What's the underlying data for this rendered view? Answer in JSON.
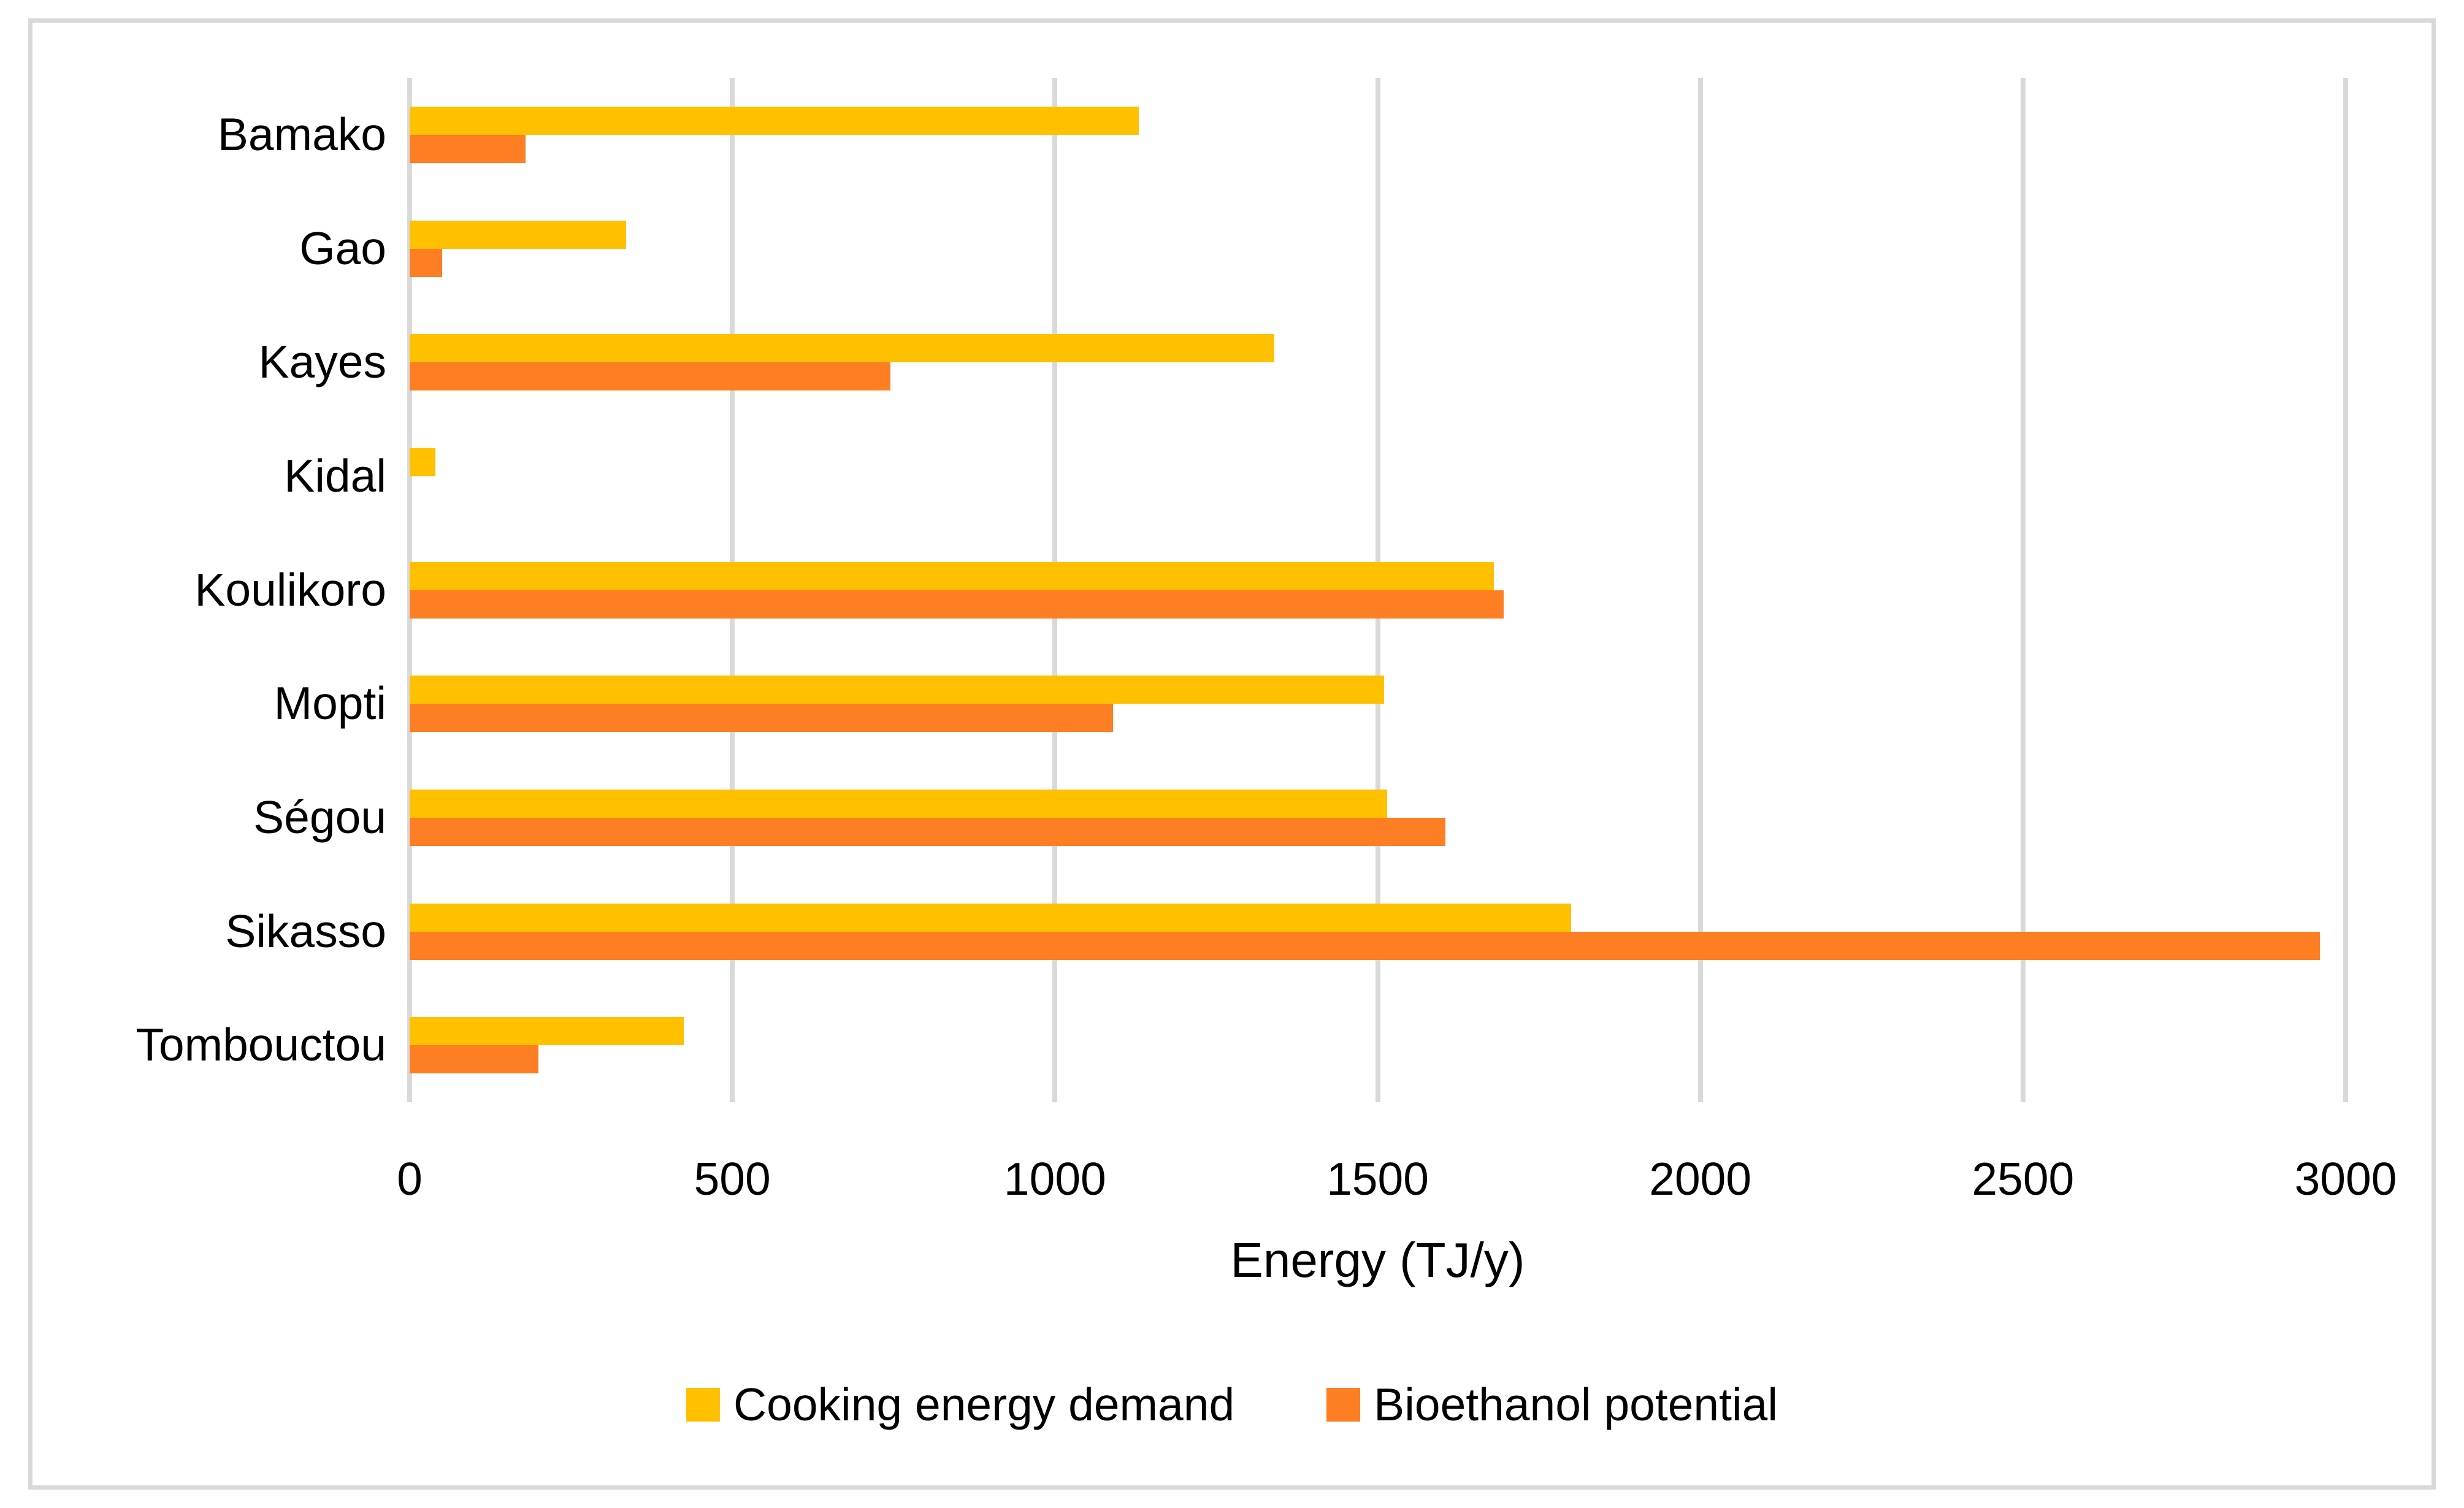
{
  "figure": {
    "background": "#ffffff",
    "border_color": "#d9d9d9"
  },
  "chart_data": {
    "type": "bar",
    "orientation": "horizontal",
    "title": "",
    "xlabel": "Energy (TJ/y)",
    "ylabel": "",
    "categories": [
      "Bamako",
      "Gao",
      "Kayes",
      "Kidal",
      "Koulikoro",
      "Mopti",
      "Ségou",
      "Sikasso",
      "Tombouctou"
    ],
    "series": [
      {
        "name": "Cooking energy demand",
        "color": "#FFC000",
        "values": [
          1130,
          335,
          1340,
          40,
          1680,
          1510,
          1515,
          1800,
          425
        ]
      },
      {
        "name": "Bioethanol potential",
        "color": "#FD7E23",
        "values": [
          180,
          50,
          745,
          0,
          1695,
          1090,
          1605,
          2960,
          200
        ]
      }
    ],
    "x_axis": {
      "min": 0,
      "max": 3000,
      "tick_step": 500,
      "tick_labels": [
        "0",
        "500",
        "1000",
        "1500",
        "2000",
        "2500",
        "3000"
      ]
    },
    "grid": {
      "vertical": true,
      "horizontal": false,
      "color": "#d9d9d9"
    },
    "legend_position": "bottom"
  }
}
